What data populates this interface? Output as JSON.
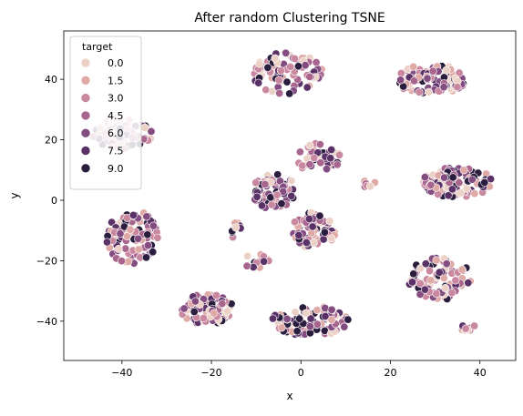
{
  "chart_data": {
    "type": "scatter",
    "title": "After random Clustering TSNE",
    "xlabel": "x",
    "ylabel": "y",
    "xlim": [
      -53,
      48
    ],
    "ylim": [
      -53,
      56
    ],
    "xticks": [
      -40,
      -20,
      0,
      20,
      40
    ],
    "yticks": [
      -40,
      -20,
      0,
      20,
      40
    ],
    "grid": false,
    "legend": {
      "title": "target",
      "position": "top-left",
      "entries": [
        "0.0",
        "1.5",
        "3.0",
        "4.5",
        "6.0",
        "7.5",
        "9.0"
      ]
    },
    "hue_range": [
      0,
      9
    ],
    "palette": [
      "#ecd2c6",
      "#dfa9a6",
      "#c9889f",
      "#a8668e",
      "#844d82",
      "#5a3267",
      "#2b1d3e"
    ],
    "clusters": [
      {
        "center": [
          -40,
          22
        ],
        "radius": [
          7,
          5
        ],
        "count": 75
      },
      {
        "center": [
          -3,
          42
        ],
        "radius": [
          8,
          7
        ],
        "count": 95
      },
      {
        "center": [
          29,
          40
        ],
        "radius": [
          8,
          5
        ],
        "count": 100
      },
      {
        "center": [
          -38,
          -12
        ],
        "radius": [
          6,
          9
        ],
        "count": 95
      },
      {
        "center": [
          -21,
          -36
        ],
        "radius": [
          6,
          5
        ],
        "count": 90
      },
      {
        "center": [
          35,
          6
        ],
        "radius": [
          8,
          5
        ],
        "count": 110
      },
      {
        "center": [
          31,
          -26
        ],
        "radius": [
          7,
          7
        ],
        "count": 95
      },
      {
        "center": [
          -6,
          3
        ],
        "radius": [
          5,
          6
        ],
        "count": 75
      },
      {
        "center": [
          4,
          14
        ],
        "radius": [
          5,
          5
        ],
        "count": 45
      },
      {
        "center": [
          3,
          -10
        ],
        "radius": [
          5,
          6
        ],
        "count": 80
      },
      {
        "center": [
          2,
          -40
        ],
        "radius": [
          9,
          5
        ],
        "count": 100
      },
      {
        "center": [
          37,
          -42
        ],
        "radius": [
          2,
          1.5
        ],
        "count": 8
      },
      {
        "center": [
          15,
          5
        ],
        "radius": [
          2,
          1.5
        ],
        "count": 6
      },
      {
        "center": [
          -14,
          -10
        ],
        "radius": [
          2,
          3
        ],
        "count": 8
      },
      {
        "center": [
          -10,
          -20
        ],
        "radius": [
          3,
          3
        ],
        "count": 12
      }
    ]
  }
}
